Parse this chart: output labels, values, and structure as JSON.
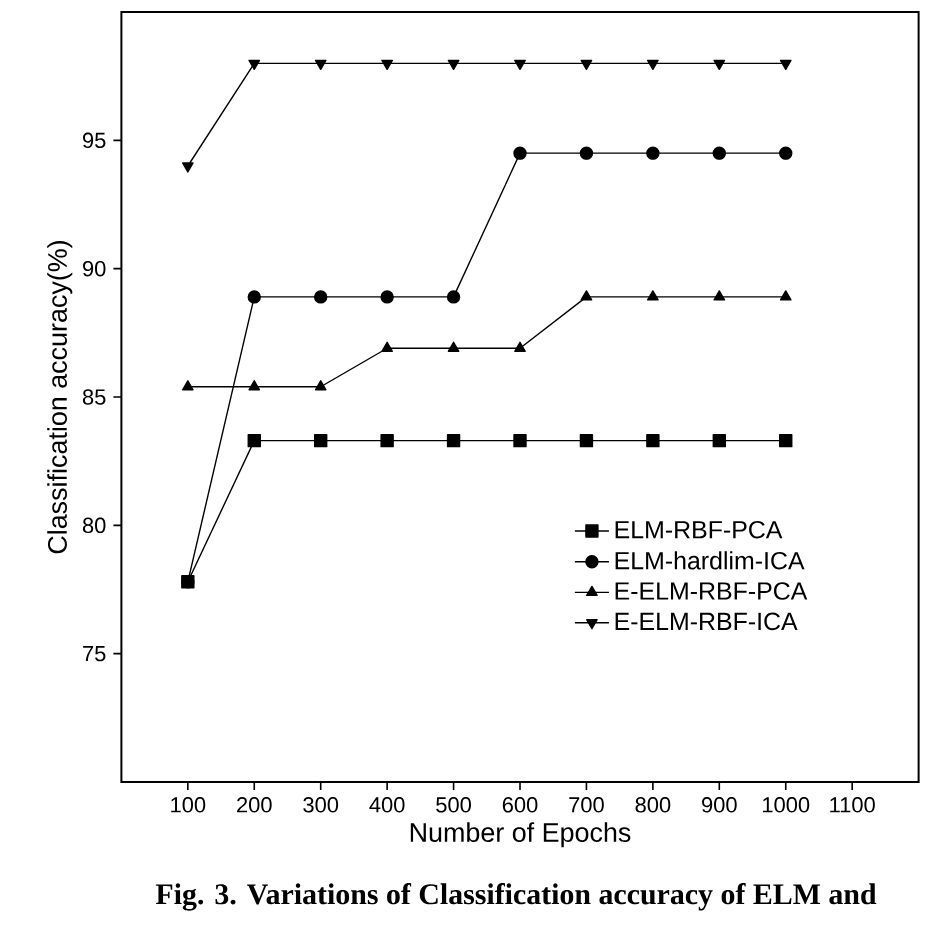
{
  "chart_data": {
    "type": "line",
    "xlabel": "Number of Epochs",
    "ylabel": "Classification accuracy(%)",
    "annotations": [
      "Fig. 3. Variations of Classification accuracy of ELM and"
    ],
    "x": [
      100,
      200,
      300,
      400,
      500,
      600,
      700,
      800,
      900,
      1000
    ],
    "xlim": [
      0,
      1200
    ],
    "xticks": [
      100,
      200,
      300,
      400,
      500,
      600,
      700,
      800,
      900,
      1000,
      1100
    ],
    "ylim": [
      70,
      100
    ],
    "yticks": [
      75,
      80,
      85,
      90,
      95
    ],
    "legend": "bottom right",
    "grid": false,
    "line_style": "solid",
    "series": [
      {
        "name": "ELM-RBF-PCA",
        "color": "#000000",
        "marker": "square",
        "values": [
          77.8,
          83.3,
          83.3,
          83.3,
          83.3,
          83.3,
          83.3,
          83.3,
          83.3,
          83.3
        ]
      },
      {
        "name": "ELM-hardlim-ICA",
        "color": "#000000",
        "marker": "circle",
        "values": [
          77.8,
          88.9,
          88.9,
          88.9,
          88.9,
          94.5,
          94.5,
          94.5,
          94.5,
          94.5
        ]
      },
      {
        "name": "E-ELM-RBF-PCA",
        "color": "#000000",
        "marker": "triangle",
        "values": [
          85.4,
          85.4,
          85.4,
          86.9,
          86.9,
          86.9,
          88.9,
          88.9,
          88.9,
          88.9
        ]
      },
      {
        "name": "E-ELM-RBF-ICA",
        "color": "#000000",
        "marker": "triangle-down",
        "values": [
          94,
          98,
          98,
          98,
          98,
          98,
          98,
          98,
          98,
          98
        ]
      }
    ]
  }
}
